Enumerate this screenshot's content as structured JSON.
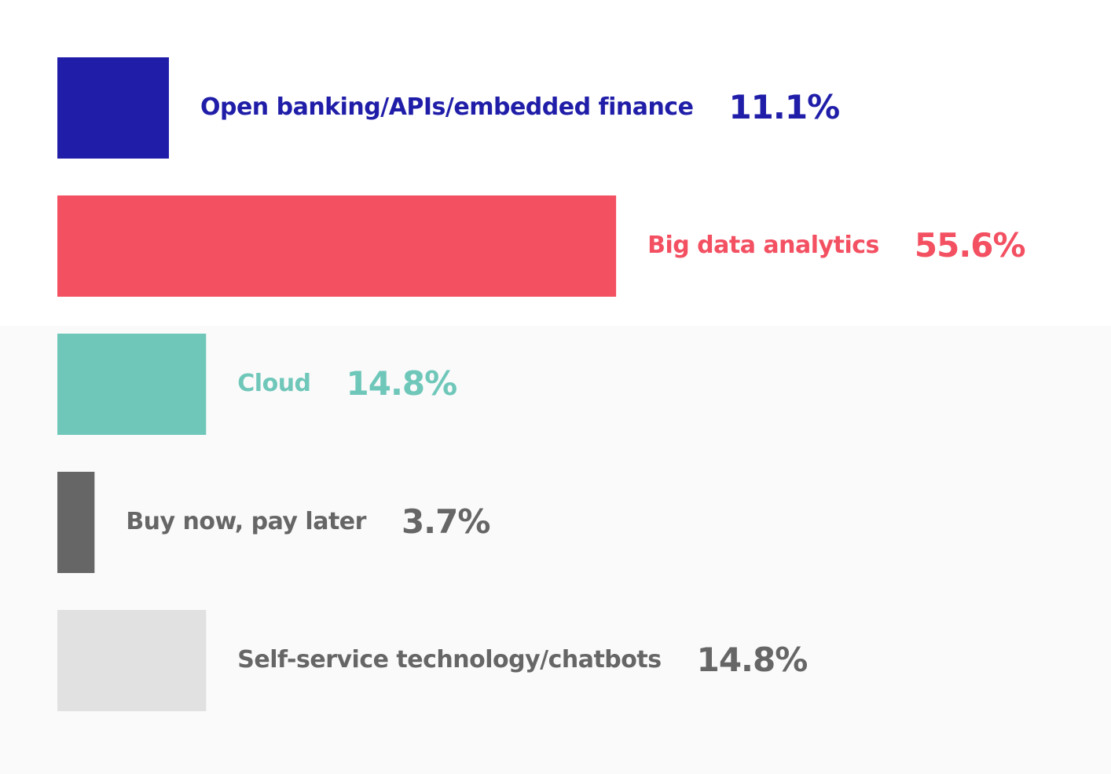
{
  "chart_data": {
    "type": "bar",
    "categories": [
      "Open banking/APIs/embedded finance",
      "Big data analytics",
      "Cloud",
      "Buy now, pay later",
      "Self-service technology/chatbots"
    ],
    "values": [
      11.1,
      55.6,
      14.8,
      3.7,
      14.8
    ],
    "value_labels": [
      "11.1%",
      "55.6%",
      "14.8%",
      "3.7%",
      "14.8%"
    ],
    "colors": [
      "#201ea8",
      "#f35062",
      "#6fc7ba",
      "#666666",
      "#e1e1e1"
    ],
    "text_colors": [
      "#201ea8",
      "#f35062",
      "#6fc7ba",
      "#666666",
      "#666666"
    ]
  }
}
